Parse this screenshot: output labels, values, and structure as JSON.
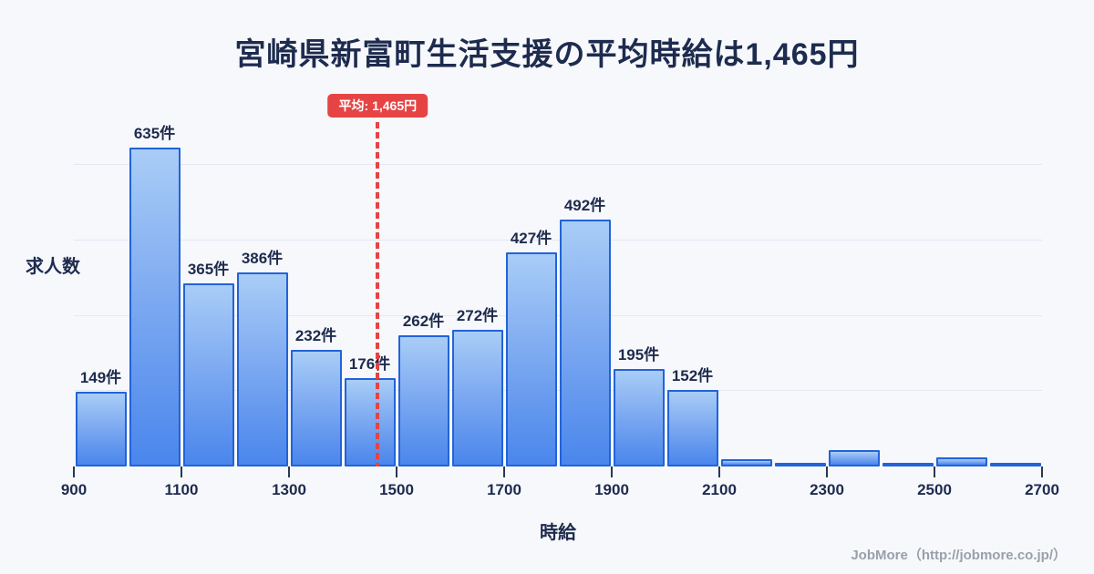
{
  "title": "宮崎県新富町生活支援の平均時給は1,465円",
  "average": {
    "label": "平均: 1,465円",
    "value": 1465
  },
  "axis": {
    "y_label": "求人数",
    "x_label": "時給"
  },
  "footer": {
    "credit": "JobMore（http://jobmore.co.jp/）"
  },
  "chart_data": {
    "type": "bar",
    "title": "宮崎県新富町生活支援の平均時給は1,465円",
    "xlabel": "時給",
    "ylabel": "求人数",
    "x_range": [
      900,
      2700
    ],
    "bin_width": 100,
    "x_ticks": [
      900,
      1100,
      1300,
      1500,
      1700,
      1900,
      2100,
      2300,
      2500,
      2700
    ],
    "ylim": [
      0,
      675
    ],
    "y_gridlines": [
      150,
      300,
      450,
      600
    ],
    "grid": "horizontal-only",
    "legend": "none",
    "average_line": {
      "x": 1465,
      "label": "平均: 1,465円",
      "style": "red-dashed"
    },
    "bins": [
      {
        "start": 900,
        "end": 1000,
        "value": 149,
        "label": "149件"
      },
      {
        "start": 1000,
        "end": 1100,
        "value": 635,
        "label": "635件"
      },
      {
        "start": 1100,
        "end": 1200,
        "value": 365,
        "label": "365件"
      },
      {
        "start": 1200,
        "end": 1300,
        "value": 386,
        "label": "386件"
      },
      {
        "start": 1300,
        "end": 1400,
        "value": 232,
        "label": "232件"
      },
      {
        "start": 1400,
        "end": 1500,
        "value": 176,
        "label": "176件"
      },
      {
        "start": 1500,
        "end": 1600,
        "value": 262,
        "label": "262件"
      },
      {
        "start": 1600,
        "end": 1700,
        "value": 272,
        "label": "272件"
      },
      {
        "start": 1700,
        "end": 1800,
        "value": 427,
        "label": "427件"
      },
      {
        "start": 1800,
        "end": 1900,
        "value": 492,
        "label": "492件"
      },
      {
        "start": 1900,
        "end": 2000,
        "value": 195,
        "label": "195件"
      },
      {
        "start": 2000,
        "end": 2100,
        "value": 152,
        "label": "152件"
      },
      {
        "start": 2100,
        "end": 2200,
        "value": 15,
        "label": ""
      },
      {
        "start": 2200,
        "end": 2300,
        "value": 4,
        "label": ""
      },
      {
        "start": 2300,
        "end": 2400,
        "value": 32,
        "label": ""
      },
      {
        "start": 2400,
        "end": 2500,
        "value": 4,
        "label": ""
      },
      {
        "start": 2500,
        "end": 2600,
        "value": 18,
        "label": ""
      },
      {
        "start": 2600,
        "end": 2700,
        "value": 4,
        "label": ""
      }
    ]
  },
  "colors": {
    "background": "#f7f8fc",
    "title_text": "#1d2b4e",
    "bar_gradient_top": "#a9cdf7",
    "bar_gradient_bottom": "#4a86ec",
    "bar_border": "#2263d8",
    "gridline": "#e3e8f2",
    "average_red": "#e64444",
    "tick_text": "#1e2b4d",
    "footer_text": "#9aa0ab"
  }
}
